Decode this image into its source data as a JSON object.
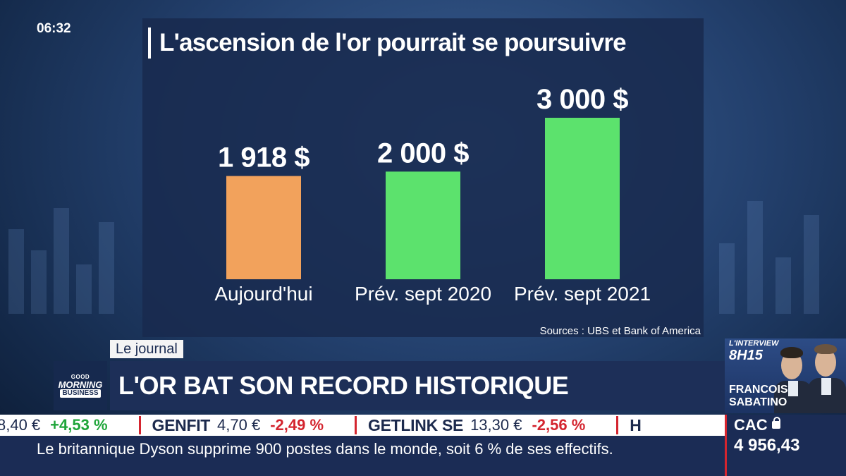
{
  "broadcast": {
    "clock": "06:32"
  },
  "chart_data": {
    "type": "bar",
    "title": "L'ascension de l'or pourrait se poursuivre",
    "categories": [
      "Aujourd'hui",
      "Prév. sept 2020",
      "Prév. sept 2021"
    ],
    "values": [
      1918,
      2000,
      3000
    ],
    "value_labels": [
      "1 918 $",
      "2 000 $",
      "3 000 $"
    ],
    "colors": [
      "#f2a25c",
      "#5ce26d",
      "#5ce26d"
    ],
    "ylim": [
      0,
      3000
    ],
    "grid": false,
    "source": "Sources : UBS et Bank of America"
  },
  "lower_third": {
    "section": "Le journal",
    "headline": "L'OR BAT SON RECORD HISTORIQUE",
    "logo": {
      "line1": "GOOD",
      "line2": "MORNING",
      "line3": "BUSINESS"
    }
  },
  "interview": {
    "label": "L'INTERVIEW",
    "time": "8H15",
    "first_name": "FRANCOIS",
    "last_name": "SABATINO"
  },
  "ticker": {
    "items": [
      {
        "name": "",
        "price": "8,40 €",
        "change": "+4,53 %",
        "direction": "up"
      },
      {
        "name": "GENFIT",
        "price": "4,70 €",
        "change": "-2,49 %",
        "direction": "down"
      },
      {
        "name": "GETLINK SE",
        "price": "13,30 €",
        "change": "-2,56 %",
        "direction": "down"
      },
      {
        "name": "H",
        "price": "",
        "change": "",
        "direction": ""
      }
    ],
    "news": "Le britannique Dyson supprime 900 postes dans le monde, soit 6 % de ses effectifs."
  },
  "index": {
    "name": "CAC",
    "value": "4 956,43"
  }
}
